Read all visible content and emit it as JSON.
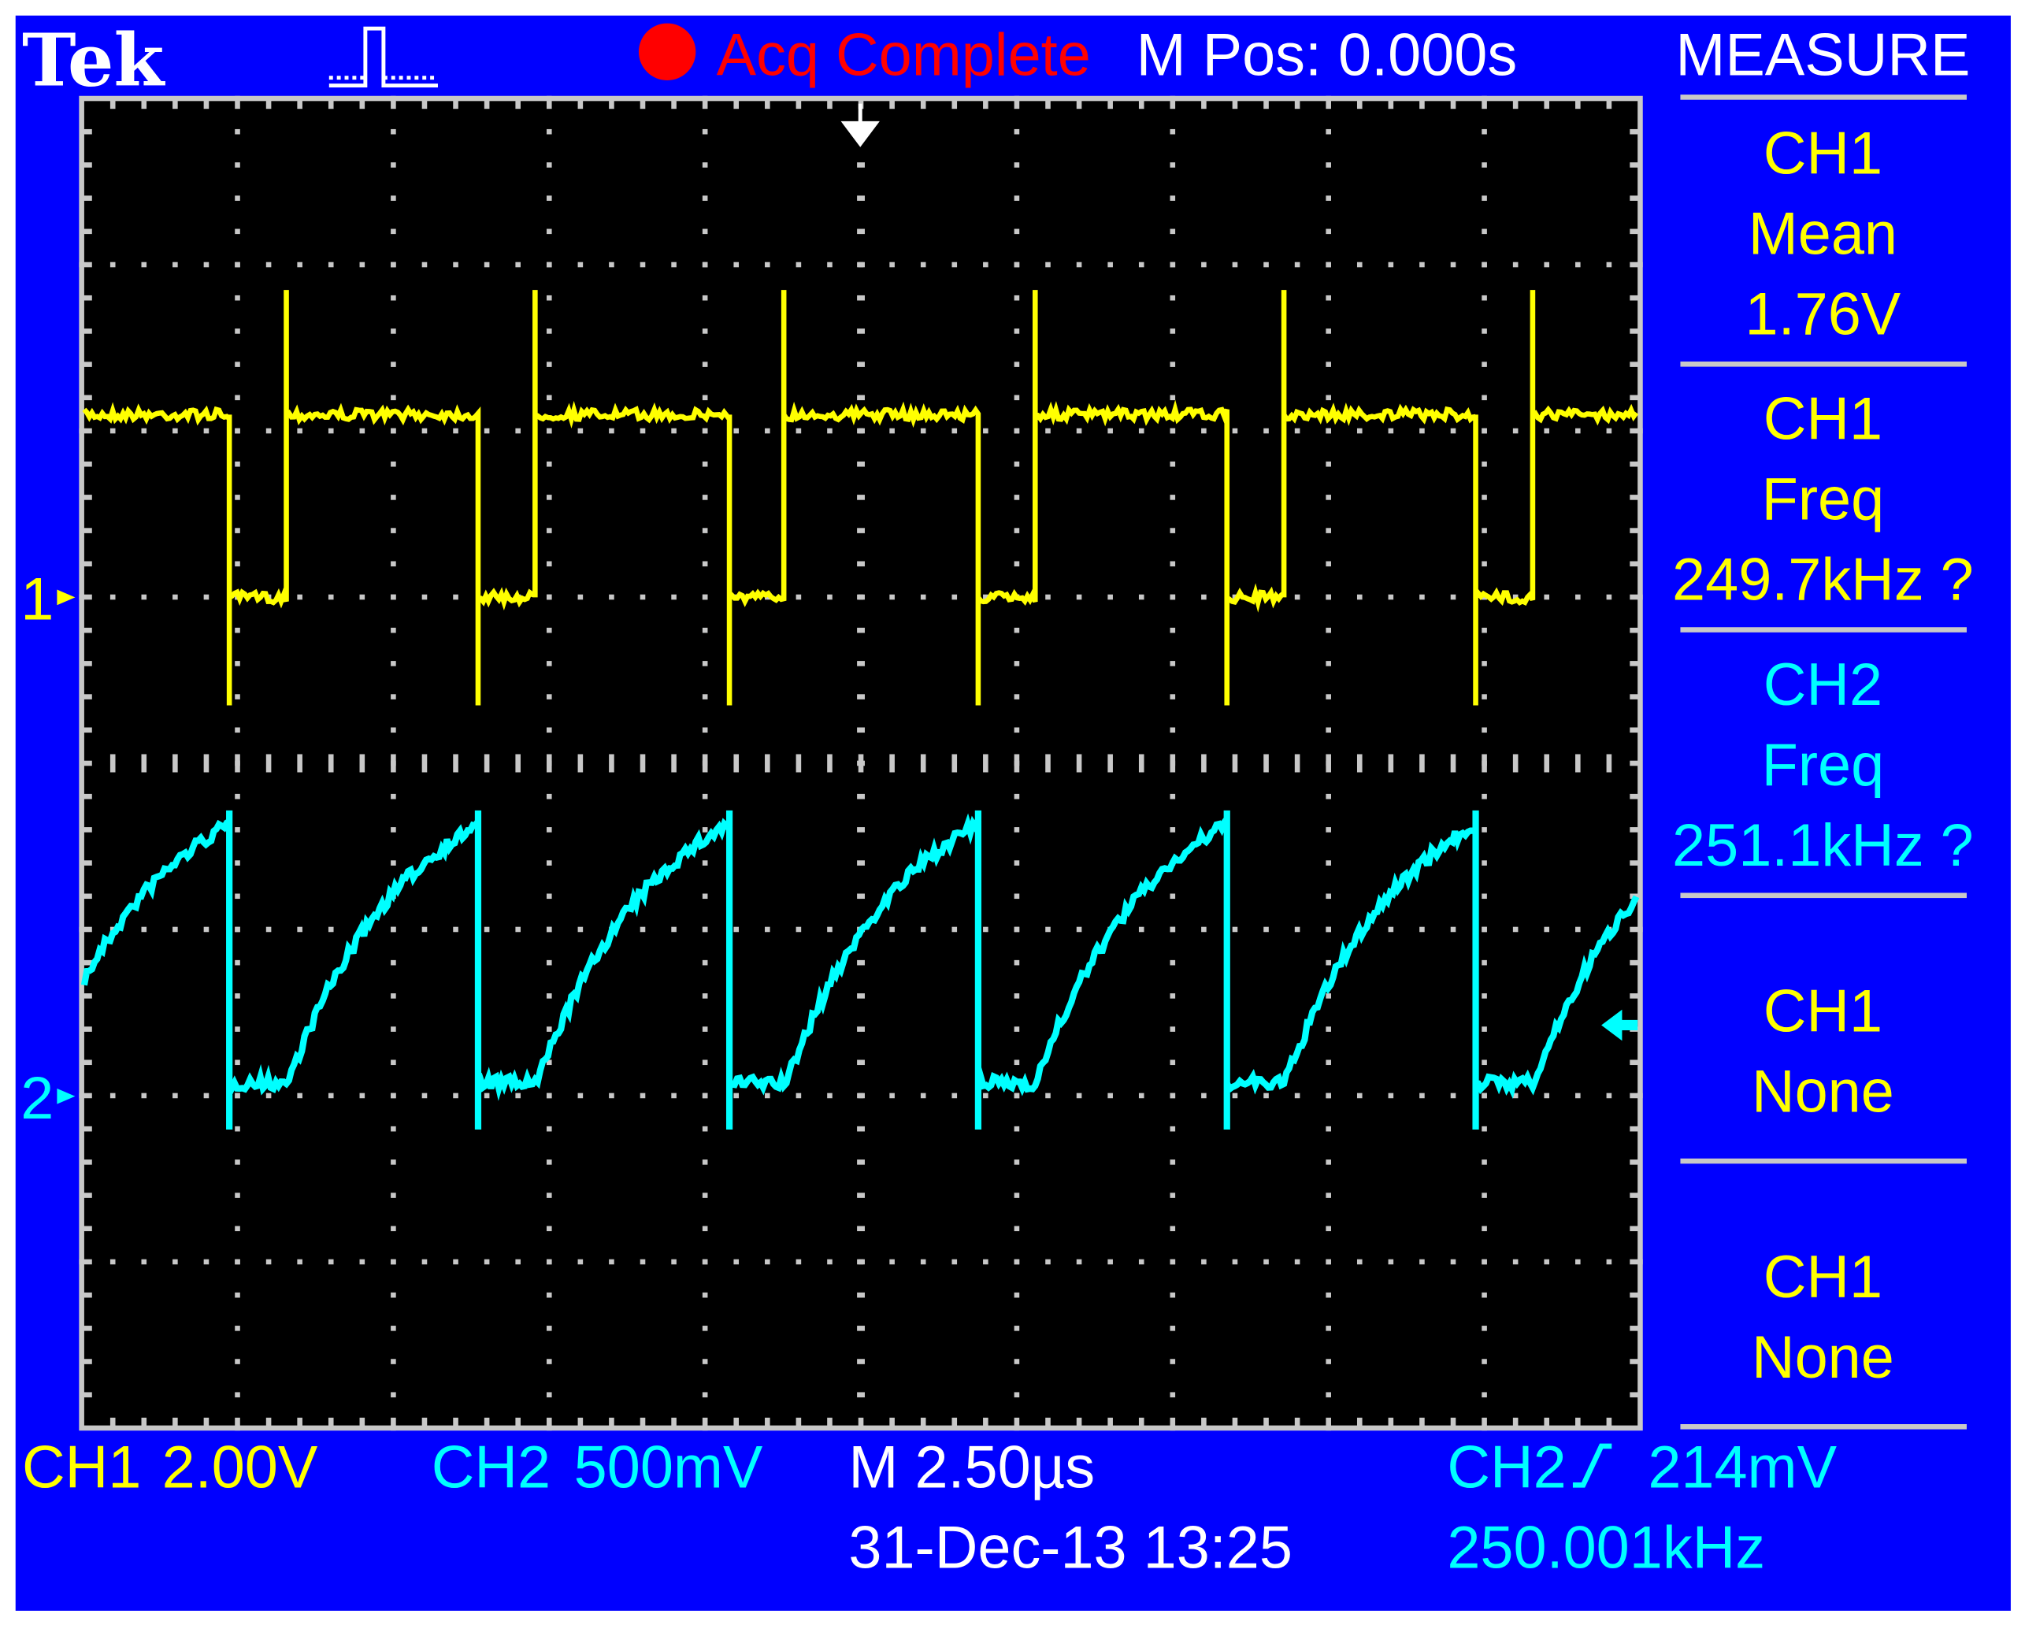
{
  "header": {
    "brand": "Tek",
    "trigger_icon": "run-trigger-waveform-icon",
    "status_icon": "acquisition-stopped-dot-icon",
    "status": "Acq Complete",
    "m_pos": "M Pos: 0.000s",
    "menu_title": "MEASURE"
  },
  "measure": [
    {
      "channel": "CH1",
      "type": "Mean",
      "value": "1.76V",
      "color": "#ffff00"
    },
    {
      "channel": "CH1",
      "type": "Freq",
      "value": "249.7kHz ?",
      "color": "#ffff00"
    },
    {
      "channel": "CH2",
      "type": "Freq",
      "value": "251.1kHz ?",
      "color": "#00ffff"
    },
    {
      "channel": "CH1",
      "type": "None",
      "value": "",
      "color": "#ffff00"
    },
    {
      "channel": "CH1",
      "type": "None",
      "value": "",
      "color": "#ffff00"
    }
  ],
  "markers": {
    "ch1": "1",
    "ch2": "2"
  },
  "footer": {
    "ch1_label": "CH1",
    "ch1_scale": "2.00V",
    "ch2_label": "CH2",
    "ch2_scale": "500mV",
    "timebase": "M 2.50µs",
    "datetime": "31-Dec-13 13:25",
    "trigger_source": "CH2",
    "trigger_slope_icon": "rising-edge-icon",
    "trigger_level": "214mV",
    "trigger_freq": "250.001kHz"
  },
  "colors": {
    "background": "#0000ff",
    "screen": "#000000",
    "grid": "#c8c8c8",
    "ch1": "#ffff00",
    "ch2": "#00ffff",
    "status": "#ff0000"
  },
  "chart_data": {
    "type": "line",
    "x_unit": "µs",
    "xlim": [
      -12.5,
      12.5
    ],
    "divisions": {
      "horizontal": 10,
      "vertical": 8
    },
    "grid": true,
    "series": [
      {
        "name": "CH1",
        "volts_per_div": 2.0,
        "ylim": [
          -2.2,
          13.0
        ],
        "waveform": "square",
        "falling_edges_us": [
          -10.1,
          -6.1,
          -2.1,
          1.9,
          5.9,
          9.9
        ],
        "low_duration_us": 0.9,
        "high_level_v": 2.2,
        "low_level_v": 0.0,
        "overshoot_v": 3.7,
        "undershoot_v": -1.3
      },
      {
        "name": "CH2",
        "volts_per_div": 0.5,
        "ylim": [
          -0.45,
          3.4
        ],
        "waveform": "sawtooth",
        "falling_edges_us": [
          -10.1,
          -6.1,
          -2.1,
          1.9,
          5.9,
          9.9
        ],
        "flat_duration_us": 0.9,
        "low_level_v": 0.04,
        "peak_level_v": 0.82,
        "spike_low_v": -0.1
      }
    ],
    "trigger": {
      "source": "CH2",
      "slope": "rising",
      "level_v": 0.214,
      "position_us": 0.0
    }
  }
}
